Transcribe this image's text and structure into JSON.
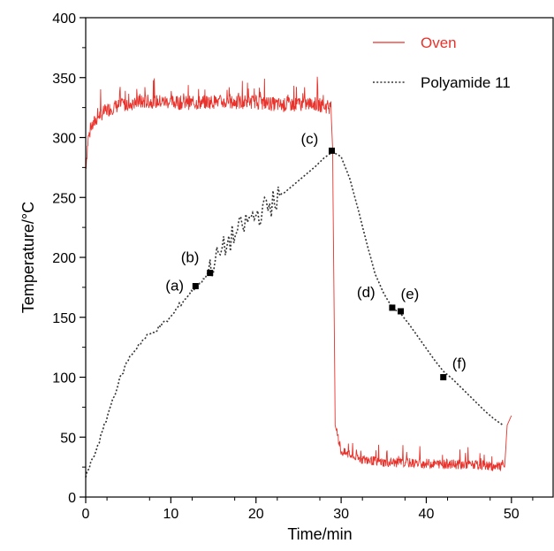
{
  "chart_data": {
    "type": "line",
    "title": "",
    "xlabel": "Time/min",
    "ylabel": "Temperature/°C",
    "xlim": [
      0,
      55
    ],
    "ylim": [
      0,
      400
    ],
    "x_ticks": [
      0,
      10,
      20,
      30,
      40,
      50
    ],
    "y_ticks": [
      0,
      50,
      100,
      150,
      200,
      250,
      300,
      350,
      400
    ],
    "grid": false,
    "legend_position": "top-right",
    "series": [
      {
        "name": "Oven",
        "color": "#e8322b",
        "style": "solid-noisy",
        "x": [
          0,
          0.3,
          0.8,
          1.5,
          2.5,
          3.5,
          5,
          7,
          9,
          11,
          13,
          15,
          17,
          19,
          21,
          23,
          25,
          27,
          28.8,
          29.0,
          29.3,
          30,
          32,
          35,
          40,
          45,
          49.2,
          49.5,
          50
        ],
        "y": [
          275,
          300,
          310,
          318,
          323,
          326,
          328,
          330,
          330,
          329,
          329,
          330,
          329,
          330,
          329,
          327,
          328,
          328,
          325,
          290,
          60,
          38,
          32,
          29,
          28,
          27,
          25,
          60,
          68
        ]
      },
      {
        "name": "Polyamide 11",
        "color": "#333333",
        "style": "dotted",
        "x": [
          0,
          1,
          2,
          3,
          4,
          5,
          6,
          7,
          8,
          9,
          10,
          11,
          12,
          13,
          14,
          15,
          16,
          17,
          18,
          19,
          20,
          21,
          22,
          23,
          24,
          25,
          26,
          27,
          28,
          29,
          30,
          31,
          32,
          33,
          34,
          35,
          36,
          37,
          38,
          39,
          40,
          41,
          42,
          43,
          44,
          45,
          46,
          47,
          48,
          49
        ],
        "y": [
          17,
          35,
          55,
          78,
          98,
          115,
          125,
          133,
          138,
          144,
          150,
          160,
          168,
          176,
          183,
          195,
          205,
          215,
          222,
          230,
          235,
          240,
          246,
          252,
          258,
          264,
          270,
          276,
          283,
          288,
          284,
          266,
          240,
          212,
          186,
          170,
          158,
          153,
          144,
          134,
          124,
          114,
          105,
          99,
          92,
          85,
          78,
          71,
          65,
          60
        ]
      }
    ],
    "markers": [
      {
        "label": "(a)",
        "x": 12.9,
        "y": 176
      },
      {
        "label": "(b)",
        "x": 14.6,
        "y": 187
      },
      {
        "label": "(c)",
        "x": 28.9,
        "y": 289
      },
      {
        "label": "(d)",
        "x": 36.0,
        "y": 158
      },
      {
        "label": "(e)",
        "x": 37.0,
        "y": 155
      },
      {
        "label": "(f)",
        "x": 42.0,
        "y": 100
      }
    ]
  }
}
